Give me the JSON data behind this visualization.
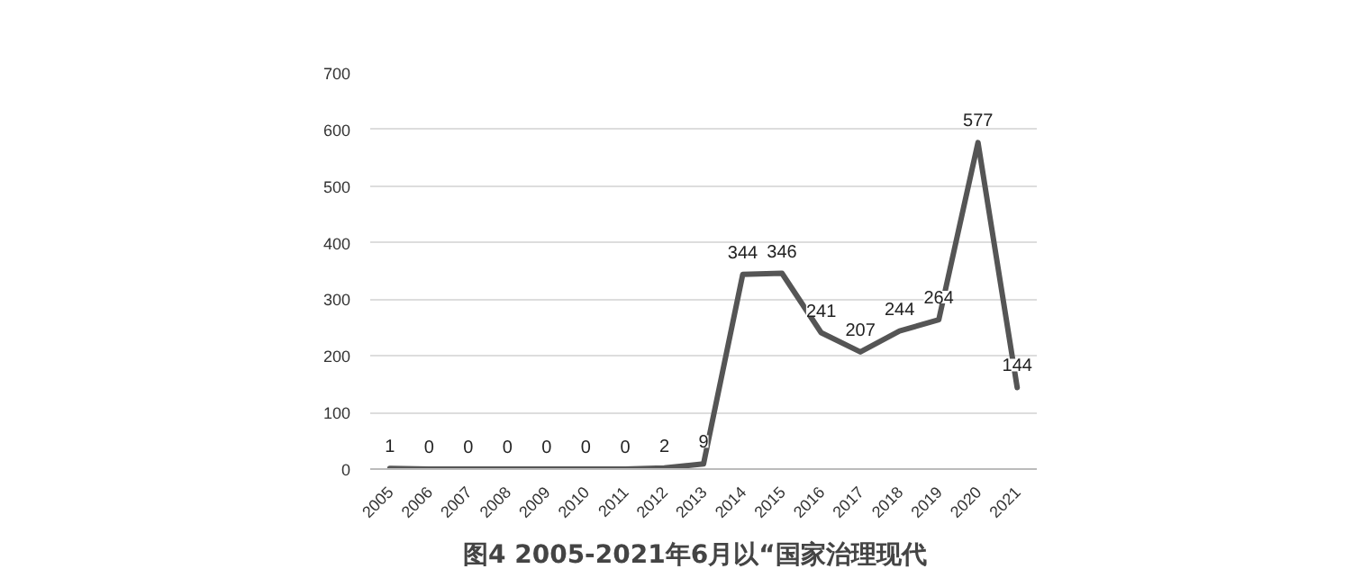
{
  "chart_data": {
    "type": "line",
    "title": "图4   2005-2021年6月以“国家治理现代",
    "categories": [
      "2005",
      "2006",
      "2007",
      "2008",
      "2009",
      "2010",
      "2011",
      "2012",
      "2013",
      "2014",
      "2015",
      "2016",
      "2017",
      "2018",
      "2019",
      "2020",
      "2021"
    ],
    "series": [
      {
        "color": "#555555",
        "values": [
          1,
          0,
          0,
          0,
          0,
          0,
          0,
          2,
          9,
          344,
          346,
          241,
          207,
          244,
          264,
          577,
          144
        ]
      }
    ],
    "ylim": [
      0,
      700
    ],
    "yticks": [
      0,
      100,
      200,
      300,
      400,
      500,
      600,
      700
    ],
    "grid": "y",
    "data_labels": true,
    "marker": "none",
    "line_style": "solid"
  }
}
